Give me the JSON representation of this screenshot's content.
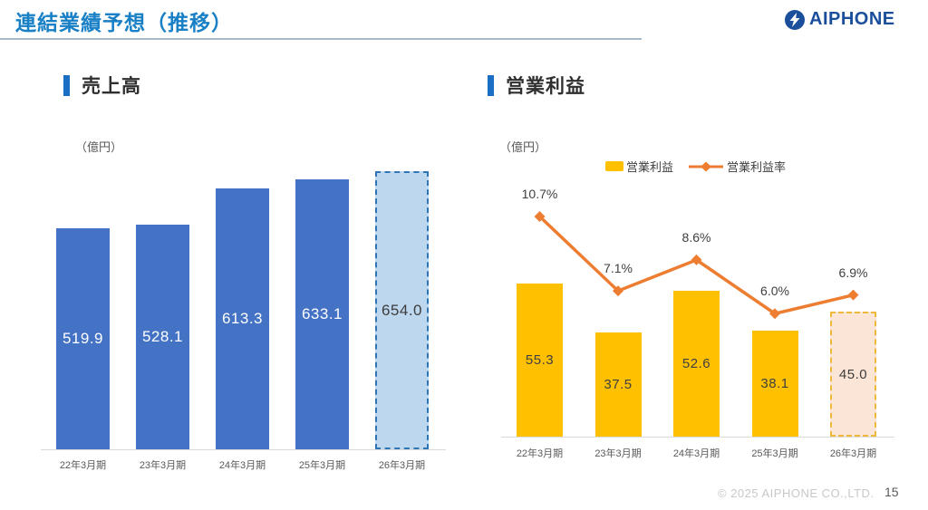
{
  "header": {
    "title": "連結業績予想（推移）",
    "logo_text": "AIPHONE"
  },
  "footer": {
    "copyright": "© 2025 AIPHONE CO.,LTD.",
    "page_number": "15"
  },
  "colors": {
    "title_blue": "#1980C6",
    "section_marker_blue": "#1A6FC5",
    "logo_navy": "#1B4F9C",
    "axis_gray": "#D9D9D9",
    "text_gray": "#595959"
  },
  "chart_data": [
    {
      "type": "bar",
      "title": "売上高",
      "unit_label": "（億円）",
      "categories": [
        "22年3月期",
        "23年3月期",
        "24年3月期",
        "25年3月期",
        "26年3月期"
      ],
      "values": [
        519.9,
        528.1,
        613.3,
        633.1,
        654.0
      ],
      "value_labels": [
        "519.9",
        "528.1",
        "613.3",
        "633.1",
        "654.0"
      ],
      "forecast_index": 4,
      "ylim": [
        0,
        700
      ],
      "bar_color": "#4472C4",
      "forecast_fill": "#BDD7EE",
      "forecast_border": "#2E75B6",
      "legend_position": "none",
      "grid": false
    },
    {
      "type": "bar+line",
      "title": "営業利益",
      "unit_label": "（億円）",
      "categories": [
        "22年3月期",
        "23年3月期",
        "24年3月期",
        "25年3月期",
        "26年3月期"
      ],
      "series": [
        {
          "name": "営業利益",
          "type": "bar",
          "values": [
            55.3,
            37.5,
            52.6,
            38.1,
            45.0
          ],
          "value_labels": [
            "55.3",
            "37.5",
            "52.6",
            "38.1",
            "45.0"
          ],
          "forecast_index": 4,
          "color": "#FFC000",
          "forecast_fill": "#FBE5D6",
          "forecast_border": "#EDB93D"
        },
        {
          "name": "営業利益率",
          "type": "line",
          "values": [
            10.7,
            7.1,
            8.6,
            6.0,
            6.9
          ],
          "point_labels": [
            "10.7%",
            "7.1%",
            "8.6%",
            "6.0%",
            "6.9%"
          ],
          "color": "#ED7D31",
          "marker": "diamond"
        }
      ],
      "ylim_bar": [
        0,
        92
      ],
      "ylim_line_pct": [
        0,
        12.4
      ],
      "legend_position": "top",
      "grid": false
    }
  ]
}
